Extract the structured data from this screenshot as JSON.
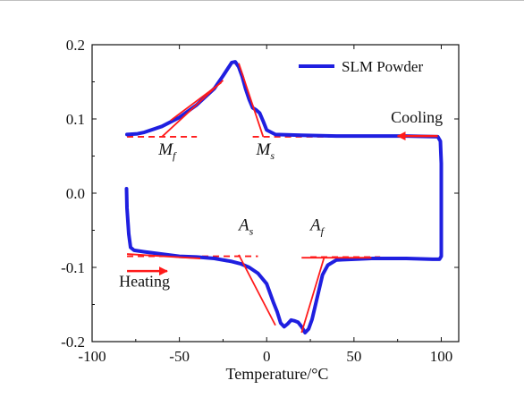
{
  "chart_data": {
    "type": "line",
    "xlabel": "Temperature/°C",
    "ylabel": "",
    "xlim": [
      -100,
      110
    ],
    "ylim": [
      -0.2,
      0.2
    ],
    "x_ticks": [
      -100,
      -50,
      0,
      50,
      100
    ],
    "y_ticks": [
      -0.2,
      -0.1,
      0.0,
      0.1,
      0.2
    ],
    "x_tick_labels": [
      "-100",
      "-50",
      "0",
      "50",
      "100"
    ],
    "y_tick_labels": [
      "-0.2",
      "-0.1",
      "0.0",
      "0.1",
      "0.2"
    ],
    "legend": {
      "position": "top-right",
      "entries": [
        "SLM Powder"
      ]
    },
    "series": [
      {
        "name": "SLM Powder",
        "color": "#1f1fe0",
        "x": [
          -80,
          -74,
          -70,
          -60,
          -50,
          -40,
          -30,
          -25,
          -20,
          -18,
          -16,
          -14,
          -12,
          -10,
          -8,
          -6,
          -4,
          -2,
          0,
          5,
          20,
          40,
          60,
          80,
          98,
          99.5,
          100,
          100,
          99,
          95,
          80,
          60,
          50,
          40,
          35,
          32,
          30,
          28,
          26,
          24,
          22,
          20,
          18,
          16,
          14,
          12,
          10,
          8,
          6,
          4,
          2,
          0,
          -5,
          -10,
          -15,
          -20,
          -30,
          -40,
          -50,
          -60,
          -70,
          -76,
          -78,
          -79,
          -80,
          -80.3
        ],
        "y": [
          0.079,
          0.08,
          0.082,
          0.09,
          0.102,
          0.119,
          0.141,
          0.158,
          0.176,
          0.177,
          0.17,
          0.157,
          0.14,
          0.126,
          0.115,
          0.112,
          0.108,
          0.097,
          0.085,
          0.079,
          0.078,
          0.077,
          0.077,
          0.077,
          0.076,
          0.07,
          0.04,
          -0.085,
          -0.089,
          -0.089,
          -0.088,
          -0.088,
          -0.089,
          -0.09,
          -0.097,
          -0.11,
          -0.13,
          -0.15,
          -0.17,
          -0.183,
          -0.188,
          -0.18,
          -0.174,
          -0.172,
          -0.171,
          -0.176,
          -0.18,
          -0.175,
          -0.16,
          -0.148,
          -0.135,
          -0.122,
          -0.108,
          -0.1,
          -0.095,
          -0.092,
          -0.088,
          -0.086,
          -0.085,
          -0.082,
          -0.079,
          -0.077,
          -0.073,
          -0.055,
          -0.02,
          0.006
        ]
      }
    ],
    "tangent_lines": [
      {
        "x": [
          -60,
          -25
        ],
        "y": [
          0.076,
          0.152
        ]
      },
      {
        "x": [
          -16,
          -2
        ],
        "y": [
          0.175,
          0.076
        ]
      },
      {
        "x": [
          -55,
          -26
        ],
        "y": [
          0.098,
          0.149
        ]
      },
      {
        "x": [
          -80,
          -38
        ],
        "y": [
          -0.082,
          -0.088
        ]
      },
      {
        "x": [
          -16,
          5
        ],
        "y": [
          -0.083,
          -0.178
        ]
      },
      {
        "x": [
          20,
          33
        ],
        "y": [
          -0.188,
          -0.086
        ]
      },
      {
        "x": [
          20,
          60
        ],
        "y": [
          -0.087,
          -0.087
        ]
      }
    ],
    "baselines": [
      {
        "x": [
          -80,
          -40
        ],
        "y": [
          0.076,
          0.076
        ]
      },
      {
        "x": [
          -8,
          80
        ],
        "y": [
          0.076,
          0.076
        ]
      },
      {
        "x": [
          -80,
          -5
        ],
        "y": [
          -0.085,
          -0.085
        ]
      },
      {
        "x": [
          25,
          65
        ],
        "y": [
          -0.086,
          -0.086
        ]
      }
    ],
    "arrows": [
      {
        "label": "Cooling",
        "from": [
          98,
          0.077
        ],
        "to": [
          75,
          0.077
        ]
      },
      {
        "label": "Heating",
        "from": [
          -80,
          -0.105
        ],
        "to": [
          -57,
          -0.105
        ]
      }
    ],
    "annotations": [
      {
        "symbol": "M",
        "subscript": "f",
        "x": -62,
        "y": 0.052
      },
      {
        "symbol": "M",
        "subscript": "s",
        "x": -6,
        "y": 0.052
      },
      {
        "symbol": "A",
        "subscript": "s",
        "x": -16,
        "y": -0.05
      },
      {
        "symbol": "A",
        "subscript": "f",
        "x": 25,
        "y": -0.05
      },
      {
        "label": "Cooling",
        "x": 86,
        "y": 0.095
      },
      {
        "label": "Heating",
        "x": -70,
        "y": -0.126
      }
    ]
  }
}
